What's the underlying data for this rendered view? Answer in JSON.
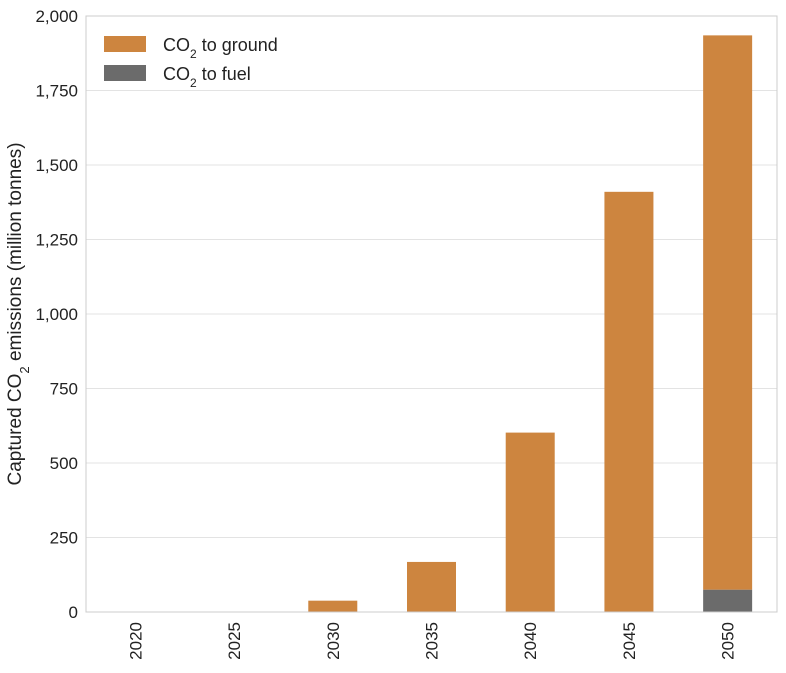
{
  "chart_data": {
    "type": "bar",
    "stacked": true,
    "title": "",
    "xlabel": "",
    "ylabel_parts": [
      "Captured CO",
      "2",
      " emissions (million tonnes)"
    ],
    "categories": [
      "2020",
      "2025",
      "2030",
      "2035",
      "2040",
      "2045",
      "2050"
    ],
    "series": [
      {
        "name_parts": [
          "CO",
          "2",
          " to fuel"
        ],
        "color": "#6b6b6b",
        "values": [
          0,
          0,
          0,
          0,
          0,
          0,
          75
        ]
      },
      {
        "name_parts": [
          "CO",
          "2",
          " to ground"
        ],
        "color": "#cd853f",
        "values": [
          0,
          0,
          38,
          168,
          602,
          1410,
          1860
        ]
      }
    ],
    "ylim": [
      0,
      2000
    ],
    "yticks": [
      0,
      250,
      500,
      750,
      1000,
      1250,
      1500,
      1750,
      2000
    ],
    "ytick_labels": [
      "0",
      "250",
      "500",
      "750",
      "1,000",
      "1,250",
      "1,500",
      "1,750",
      "2,000"
    ],
    "grid": "horizontal",
    "legend_position": "top-left",
    "legend_order": [
      1,
      0
    ]
  }
}
